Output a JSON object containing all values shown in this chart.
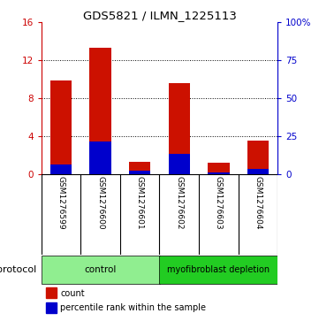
{
  "title": "GDS5821 / ILMN_1225113",
  "samples": [
    "GSM1276599",
    "GSM1276600",
    "GSM1276601",
    "GSM1276602",
    "GSM1276603",
    "GSM1276604"
  ],
  "red_values": [
    9.9,
    13.3,
    1.3,
    9.6,
    1.2,
    3.5
  ],
  "blue_values_right_pct": [
    6.25,
    21.25,
    1.875,
    13.125,
    1.25,
    3.125
  ],
  "ylim_left": [
    0,
    16
  ],
  "ylim_right": [
    0,
    100
  ],
  "yticks_left": [
    0,
    4,
    8,
    12,
    16
  ],
  "yticks_right": [
    0,
    25,
    50,
    75,
    100
  ],
  "ytick_labels_right": [
    "0",
    "25",
    "50",
    "75",
    "100%"
  ],
  "left_axis_color": "#cc0000",
  "right_axis_color": "#0000cc",
  "bar_color_red": "#cc1100",
  "bar_color_blue": "#0000cc",
  "group_control_color": "#90ee90",
  "group_deplete_color": "#22cc22",
  "group_control_label": "control",
  "group_deplete_label": "myofibroblast depletion",
  "protocol_label": "protocol",
  "legend_count_label": "count",
  "legend_pct_label": "percentile rank within the sample",
  "legend_count_color": "#cc1100",
  "legend_pct_color": "#0000cc",
  "background_color": "#ffffff",
  "label_area_color": "#d3d3d3"
}
